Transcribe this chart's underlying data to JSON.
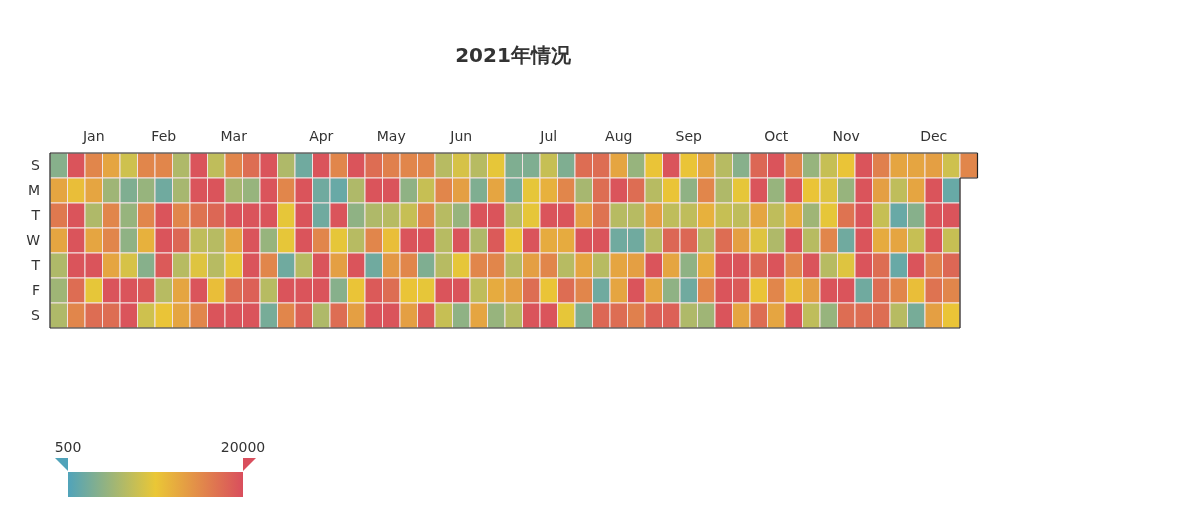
{
  "chart_data": {
    "type": "heatmap",
    "title": "2021年情况",
    "categories": [
      null,
      null,
      "Jan",
      null,
      null,
      null,
      "Feb",
      null,
      null,
      null,
      "Mar",
      null,
      null,
      null,
      null,
      "Apr",
      null,
      null,
      null,
      "May",
      null,
      null,
      null,
      "Jun",
      null,
      null,
      null,
      null,
      "Jul",
      null,
      null,
      null,
      "Aug",
      null,
      null,
      null,
      "Sep",
      null,
      null,
      null,
      null,
      "Oct",
      null,
      null,
      null,
      "Nov",
      null,
      null,
      null,
      null,
      "Dec",
      null,
      null
    ],
    "y_categories": [
      "S",
      "M",
      "T",
      "W",
      "T",
      "F",
      "S"
    ],
    "cells": [
      [
        4000,
        19500,
        15500,
        13000,
        8500,
        15500,
        15500,
        6500,
        19500,
        7500,
        15500,
        17500,
        19500,
        6500,
        2500,
        19500,
        15500,
        19500,
        17500,
        16000,
        15500,
        15500,
        7000,
        9000,
        7000,
        10000,
        3500,
        3500,
        8000,
        3500,
        17500,
        17500,
        13000,
        5000,
        10500,
        19500,
        10500,
        13000,
        7000,
        4000,
        18000,
        19500,
        15500,
        5000,
        8000,
        10500,
        19500,
        16000,
        13000,
        13000,
        13500,
        8500,
        15500
      ],
      [
        13000,
        11000,
        13000,
        5500,
        3500,
        5000,
        2500,
        6000,
        19500,
        19500,
        6000,
        5000,
        19500,
        15500,
        19500,
        2500,
        2000,
        6500,
        19500,
        19500,
        4500,
        8000,
        15500,
        13500,
        3500,
        13000,
        3000,
        10000,
        12000,
        15500,
        6000,
        17500,
        19500,
        17500,
        7000,
        10500,
        4500,
        15500,
        6500,
        10000,
        19500,
        5000,
        19500,
        10500,
        9500,
        5000,
        19500,
        13500,
        7500,
        13000,
        19500,
        2000,
        null
      ],
      [
        16500,
        19500,
        6500,
        15500,
        5000,
        15500,
        19500,
        15500,
        17000,
        18000,
        19500,
        19500,
        19500,
        10000,
        19500,
        2500,
        19500,
        4500,
        6500,
        7000,
        8000,
        15500,
        7000,
        5000,
        19500,
        19500,
        7000,
        10000,
        19500,
        19500,
        13500,
        17000,
        7000,
        7000,
        13500,
        7500,
        7500,
        12000,
        8000,
        7500,
        13000,
        7500,
        12500,
        5500,
        10000,
        17000,
        19500,
        8000,
        2000,
        4000,
        19500,
        19500,
        null
      ],
      [
        13000,
        19500,
        13000,
        15500,
        4500,
        12000,
        19500,
        18000,
        7500,
        7000,
        13000,
        19500,
        5000,
        10000,
        19500,
        15500,
        10000,
        7000,
        15500,
        11000,
        19500,
        19500,
        7000,
        19500,
        6500,
        19000,
        10500,
        19500,
        12500,
        12500,
        19500,
        19500,
        2500,
        2500,
        7000,
        18000,
        18000,
        7000,
        17500,
        13500,
        9500,
        6500,
        19500,
        7000,
        15500,
        2500,
        19500,
        12500,
        13000,
        8000,
        19500,
        8000,
        null
      ],
      [
        6500,
        19500,
        19500,
        13000,
        9000,
        4000,
        19000,
        7000,
        9500,
        7000,
        10000,
        19500,
        15500,
        2500,
        7000,
        19500,
        13500,
        19500,
        2500,
        14000,
        15500,
        3500,
        7000,
        10000,
        15500,
        15500,
        7000,
        13500,
        15500,
        7000,
        13000,
        7000,
        13000,
        13500,
        19500,
        13000,
        4500,
        12500,
        19500,
        19500,
        18000,
        19500,
        15500,
        19500,
        7000,
        9500,
        19500,
        17500,
        2000,
        19500,
        16000,
        18000,
        null
      ],
      [
        5500,
        17500,
        10000,
        19500,
        19500,
        19000,
        7000,
        13000,
        19500,
        11000,
        17500,
        18500,
        7000,
        19500,
        19500,
        19500,
        4000,
        10500,
        19000,
        17500,
        10500,
        10000,
        19500,
        19500,
        7500,
        12500,
        13500,
        17500,
        10500,
        17500,
        15500,
        2500,
        13000,
        19500,
        13000,
        4500,
        2500,
        15500,
        19500,
        19000,
        10500,
        15500,
        11000,
        13500,
        19500,
        19500,
        2500,
        17500,
        15500,
        11000,
        17000,
        15500,
        null
      ],
      [
        6500,
        15500,
        17500,
        17500,
        19500,
        8500,
        10500,
        13000,
        15500,
        19500,
        19500,
        19500,
        3000,
        15500,
        18500,
        6500,
        17500,
        13500,
        19500,
        19500,
        13500,
        19000,
        8000,
        4500,
        13000,
        5000,
        7000,
        19500,
        19500,
        10000,
        3500,
        18000,
        17500,
        16000,
        18500,
        18500,
        6500,
        5500,
        19500,
        13000,
        17500,
        13000,
        19500,
        7500,
        5000,
        17500,
        17500,
        17500,
        7000,
        3000,
        13500,
        10500,
        null
      ]
    ],
    "clim": [
      500,
      20000
    ],
    "cticks": [
      500,
      20000
    ]
  }
}
